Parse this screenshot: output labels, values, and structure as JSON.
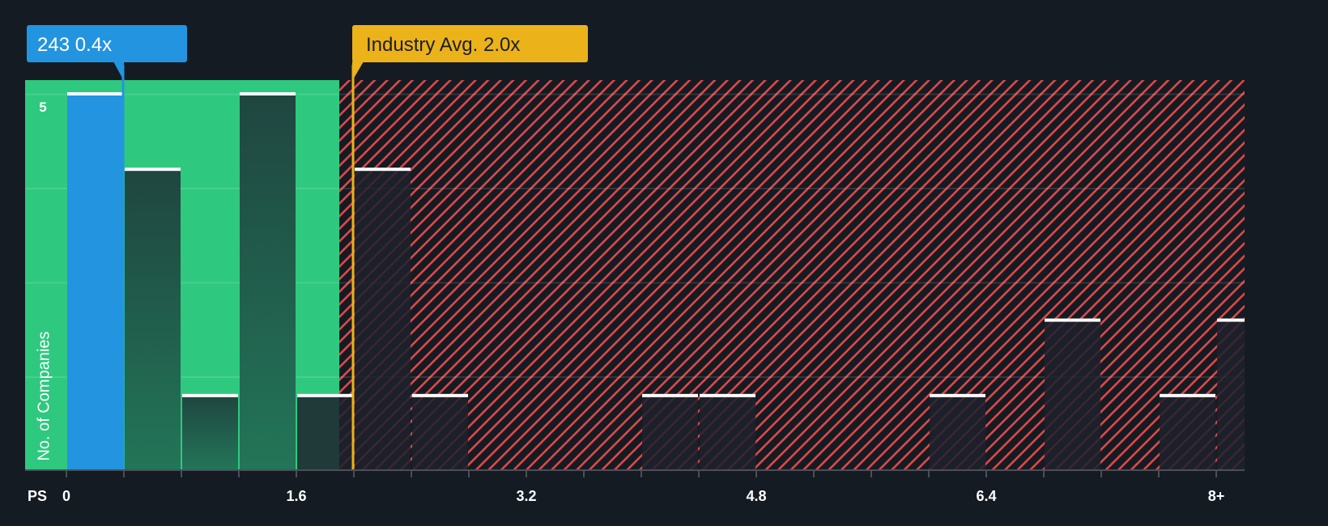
{
  "chart_data": {
    "type": "bar",
    "title": "",
    "xlabel": "PS",
    "ylabel": "No. of Companies",
    "x_tick_labels": [
      "0",
      "1.6",
      "3.2",
      "4.8",
      "6.4",
      "8+"
    ],
    "x_tick_values": [
      0,
      1.6,
      3.2,
      4.8,
      6.4,
      8.0
    ],
    "y_tick_labels": [
      "5"
    ],
    "bin_width": 0.4,
    "categories": [
      "0-0.4",
      "0.4-0.8",
      "0.8-1.2",
      "1.2-1.6",
      "1.6-2.0",
      "2.0-2.4",
      "2.4-2.8",
      "2.8-3.2",
      "3.2-3.6",
      "3.6-4.0",
      "4.0-4.4",
      "4.4-4.8",
      "4.8-5.2",
      "5.2-5.6",
      "5.6-6.0",
      "6.0-6.4",
      "6.4-6.8",
      "6.8-7.2",
      "7.2-7.6",
      "7.6-8.0",
      "8+"
    ],
    "bin_starts": [
      0,
      0.4,
      0.8,
      1.2,
      1.6,
      2.0,
      2.4,
      2.8,
      3.2,
      3.6,
      4.0,
      4.4,
      4.8,
      5.2,
      5.6,
      6.0,
      6.4,
      6.8,
      7.2,
      7.6,
      8.0
    ],
    "values": [
      5,
      4,
      1,
      5,
      1,
      4,
      1,
      0,
      0,
      0,
      1,
      1,
      0,
      0,
      0,
      1,
      0,
      2,
      0,
      1,
      2
    ],
    "highlight_bin_index": 0,
    "ylim": [
      0,
      5.2
    ],
    "xlim": [
      -0.29,
      8.2
    ],
    "grid": true,
    "company_marker": {
      "label": "243 0.4x",
      "value": 0.4
    },
    "industry_marker": {
      "label": "Industry Avg. 2.0x",
      "value": 2.0
    },
    "zones": [
      {
        "name": "undervalued",
        "from": -0.29,
        "to": 1.9,
        "color": "#2ec97f"
      },
      {
        "name": "overvalued",
        "from": 1.9,
        "to": 8.2,
        "color": "#e04848",
        "pattern": "diagonal-hatch"
      }
    ]
  },
  "colors": {
    "background": "#151b23",
    "green_zone": "#2ec97f",
    "hatch_red": "#e04848",
    "company_blue": "#2394e0",
    "industry_yellow": "#ecb219",
    "bar_dark_green": "#1f4a40",
    "bar_dark": "#1c212b",
    "bar_cap": "#ffffff"
  }
}
